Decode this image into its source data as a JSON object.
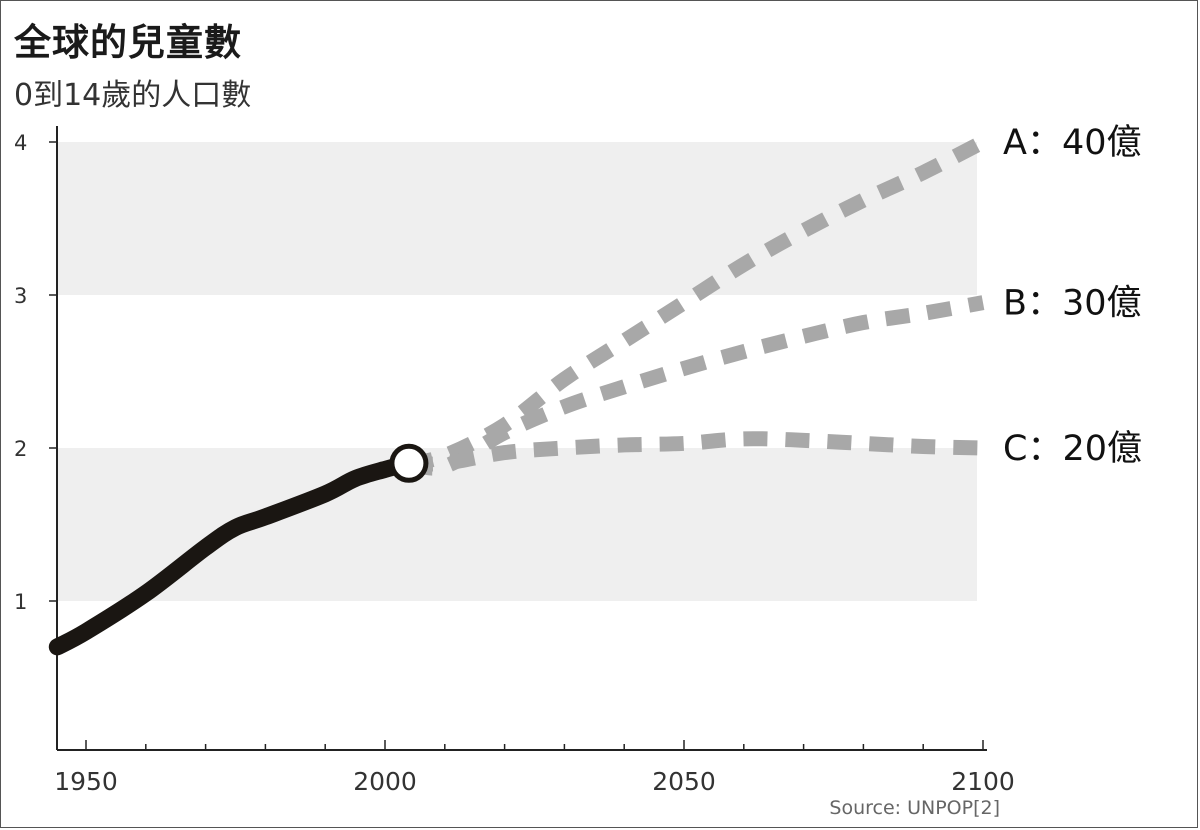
{
  "chart_data": {
    "type": "line",
    "title": "全球的兒童數",
    "subtitle": "0到14歲的人口數",
    "source": "Source: UNPOP[2]",
    "xlim": [
      1945,
      2102
    ],
    "ylim": [
      0,
      4.1
    ],
    "x_ticks": [
      1950,
      2000,
      2050,
      2100
    ],
    "y_ticks": [
      1,
      2,
      3,
      4
    ],
    "shaded_bands": [
      [
        1,
        2
      ],
      [
        3,
        4
      ]
    ],
    "grid": false,
    "colors": {
      "historical": "#1a1612",
      "projection": "#a8a8a8",
      "band": "#efefef",
      "axis": "#222222"
    },
    "historical": {
      "x": [
        1945,
        1950,
        1960,
        1970,
        1975,
        1980,
        1990,
        1995,
        2000,
        2004
      ],
      "y": [
        0.7,
        0.8,
        1.05,
        1.35,
        1.48,
        1.55,
        1.7,
        1.8,
        1.86,
        1.9
      ]
    },
    "marker": {
      "x": 2004,
      "y": 1.9
    },
    "series": [
      {
        "name": "A：40億",
        "x": [
          2004,
          2010,
          2020,
          2030,
          2040,
          2050,
          2060,
          2070,
          2080,
          2090,
          2100
        ],
        "y": [
          1.9,
          1.95,
          2.15,
          2.45,
          2.7,
          2.95,
          3.2,
          3.42,
          3.62,
          3.8,
          4.0
        ]
      },
      {
        "name": "B：30億",
        "x": [
          2004,
          2010,
          2020,
          2030,
          2040,
          2050,
          2060,
          2070,
          2080,
          2090,
          2100
        ],
        "y": [
          1.9,
          1.88,
          2.1,
          2.27,
          2.4,
          2.52,
          2.63,
          2.73,
          2.82,
          2.88,
          2.95
        ]
      },
      {
        "name": "C：20億",
        "x": [
          2004,
          2010,
          2020,
          2030,
          2040,
          2050,
          2060,
          2070,
          2080,
          2090,
          2100
        ],
        "y": [
          1.9,
          1.9,
          1.97,
          2.0,
          2.02,
          2.03,
          2.06,
          2.05,
          2.03,
          2.01,
          2.0
        ]
      }
    ]
  }
}
